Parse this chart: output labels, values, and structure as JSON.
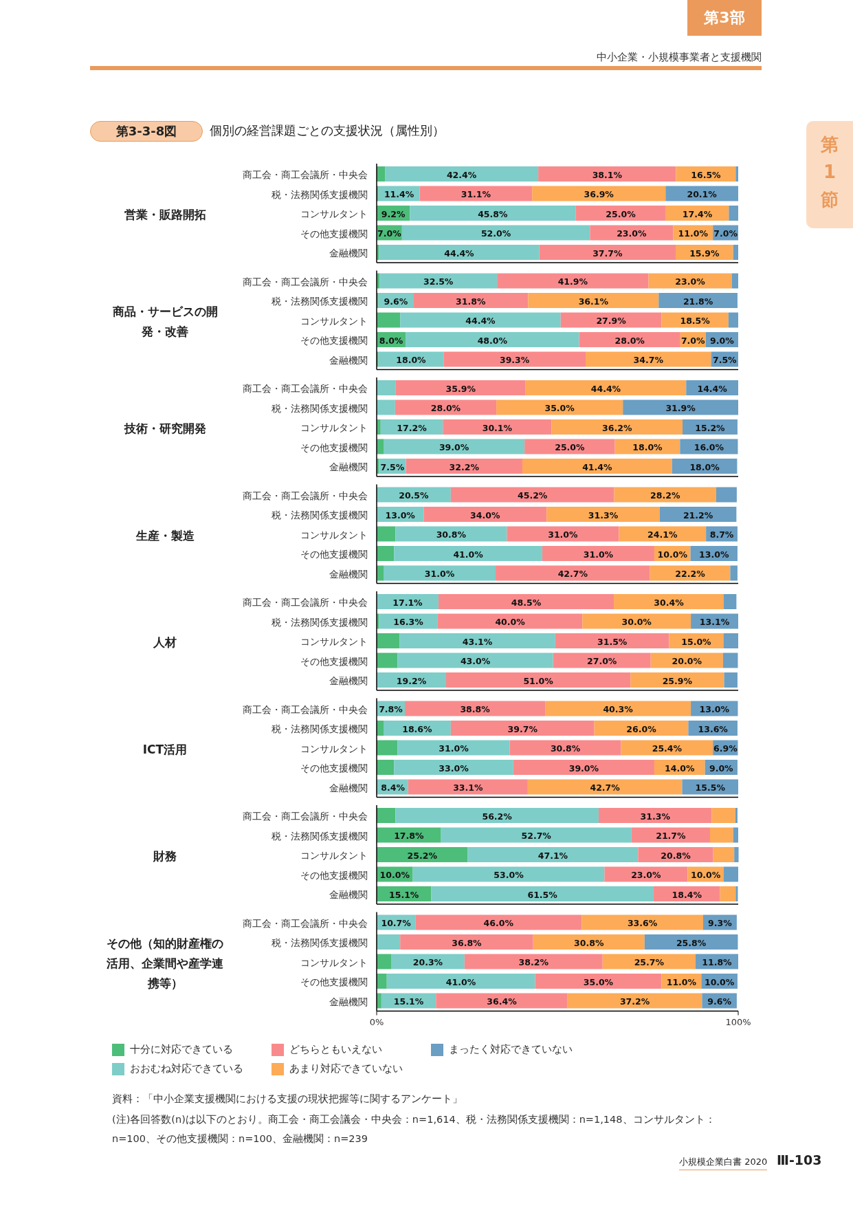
{
  "chart_data": [
    {
      "type": "bar",
      "orientation": "horizontal",
      "stacked": true,
      "title": "個別の経営課題ごとの支援状況（属性別）",
      "ylabel": "営業・販路開拓",
      "xlim": [
        0,
        100
      ],
      "tick_labels": "y",
      "annotations": [
        "第3部",
        "中小企業・小規模事業者と支援機関",
        "第1節",
        "第3-3-8図"
      ],
      "categories": [
        "商工会・商工会議所・中央会",
        "税・法務関係支援機関",
        "コンサルタント",
        "その他支援機関",
        "金融機関"
      ],
      "series": [
        {
          "color": "#4dbd7a",
          "values": [
            2.3,
            0.5,
            9.2,
            7.0,
            0.6
          ],
          "value_labels": [
            null,
            null,
            "9.2%",
            "7.0%",
            null
          ]
        },
        {
          "color": "#7ecdc8",
          "values": [
            42.4,
            11.4,
            45.8,
            52.0,
            44.4
          ],
          "value_labels": [
            "42.4%",
            "11.4%",
            "45.8%",
            "52.0%",
            "44.4%"
          ]
        },
        {
          "color": "#f98a8c",
          "values": [
            38.1,
            31.1,
            25.0,
            23.0,
            37.7
          ],
          "value_labels": [
            "38.1%",
            "31.1%",
            "25.0%",
            "23.0%",
            "37.7%"
          ]
        },
        {
          "color": "#fdab57",
          "values": [
            16.5,
            36.9,
            17.4,
            11.0,
            15.9
          ],
          "value_labels": [
            "16.5%",
            "36.9%",
            "17.4%",
            "11.0%",
            "15.9%"
          ]
        },
        {
          "color": "#6a9ec3",
          "values": [
            0.7,
            20.1,
            2.6,
            7.0,
            1.4
          ],
          "value_labels": [
            null,
            "20.1%",
            null,
            "7.0%",
            null
          ]
        }
      ]
    },
    {
      "type": "bar",
      "orientation": "horizontal",
      "stacked": true,
      "ylabel": "商品・サービスの開発・改善",
      "xlim": [
        0,
        100
      ],
      "tick_labels": "y",
      "categories": [
        "商工会・商工会議所・中央会",
        "税・法務関係支援機関",
        "コンサルタント",
        "その他支援機関",
        "金融機関"
      ],
      "series": [
        {
          "color": "#4dbd7a",
          "values": [
            0.8,
            0.5,
            6.5,
            8.0,
            0.5
          ],
          "value_labels": [
            null,
            null,
            null,
            "8.0%",
            null
          ]
        },
        {
          "color": "#7ecdc8",
          "values": [
            32.5,
            9.6,
            44.4,
            48.0,
            18.0
          ],
          "value_labels": [
            "32.5%",
            "9.6%",
            "44.4%",
            "48.0%",
            "18.0%"
          ]
        },
        {
          "color": "#f98a8c",
          "values": [
            41.9,
            31.8,
            27.9,
            28.0,
            39.3
          ],
          "value_labels": [
            "41.9%",
            "31.8%",
            "27.9%",
            "28.0%",
            "39.3%"
          ]
        },
        {
          "color": "#fdab57",
          "values": [
            23.0,
            36.1,
            18.5,
            7.0,
            34.7
          ],
          "value_labels": [
            "23.0%",
            "36.1%",
            "18.5%",
            "7.0%",
            "34.7%"
          ]
        },
        {
          "color": "#6a9ec3",
          "values": [
            1.8,
            21.8,
            2.7,
            9.0,
            7.5
          ],
          "value_labels": [
            null,
            "21.8%",
            null,
            "9.0%",
            "7.5%"
          ]
        }
      ]
    },
    {
      "type": "bar",
      "orientation": "horizontal",
      "stacked": true,
      "ylabel": "技術・研究開発",
      "xlim": [
        0,
        100
      ],
      "tick_labels": "y",
      "categories": [
        "商工会・商工会議所・中央会",
        "税・法務関係支援機関",
        "コンサルタント",
        "その他支援機関",
        "金融機関"
      ],
      "series": [
        {
          "color": "#4dbd7a",
          "values": [
            0,
            0,
            1.1,
            1.9,
            0.6
          ]
        },
        {
          "color": "#7ecdc8",
          "values": [
            5.3,
            5.1,
            17.2,
            39.0,
            7.5
          ],
          "value_labels": [
            null,
            null,
            "17.2%",
            "39.0%",
            "7.5%"
          ]
        },
        {
          "color": "#f98a8c",
          "values": [
            35.9,
            28.0,
            30.1,
            25.0,
            32.2
          ],
          "value_labels": [
            "35.9%",
            "28.0%",
            "30.1%",
            "25.0%",
            "32.2%"
          ]
        },
        {
          "color": "#fdab57",
          "values": [
            44.4,
            35.0,
            36.2,
            18.0,
            41.4
          ],
          "value_labels": [
            "44.4%",
            "35.0%",
            "36.2%",
            "18.0%",
            "41.4%"
          ]
        },
        {
          "color": "#6a9ec3",
          "values": [
            14.4,
            31.9,
            15.2,
            16.0,
            18.0
          ],
          "value_labels": [
            "14.4%",
            "31.9%",
            "15.2%",
            "16.0%",
            "18.0%"
          ]
        }
      ]
    },
    {
      "type": "bar",
      "orientation": "horizontal",
      "stacked": true,
      "ylabel": "生産・製造",
      "xlim": [
        0,
        100
      ],
      "tick_labels": "y",
      "categories": [
        "商工会・商工会議所・中央会",
        "税・法務関係支援機関",
        "コンサルタント",
        "その他支援機関",
        "金融機関"
      ],
      "series": [
        {
          "color": "#4dbd7a",
          "values": [
            null,
            null,
            5.2,
            4.8,
            1.9
          ]
        },
        {
          "color": "#7ecdc8",
          "values": [
            20.5,
            13.0,
            30.8,
            41.0,
            31.0
          ],
          "value_labels": [
            "20.5%",
            "13.0%",
            "30.8%",
            "41.0%",
            "31.0%"
          ]
        },
        {
          "color": "#f98a8c",
          "values": [
            45.2,
            34.0,
            31.0,
            31.0,
            42.7
          ],
          "value_labels": [
            "45.2%",
            "34.0%",
            "31.0%",
            "31.0%",
            "42.7%"
          ]
        },
        {
          "color": "#fdab57",
          "values": [
            28.2,
            31.3,
            24.1,
            10.0,
            22.2
          ],
          "value_labels": [
            "28.2%",
            "31.3%",
            "24.1%",
            "10.0%",
            "22.2%"
          ]
        },
        {
          "color": "#6a9ec3",
          "values": [
            5.7,
            21.2,
            8.7,
            13.0,
            2.0
          ],
          "value_labels": [
            null,
            "21.2%",
            "8.7%",
            "13.0%",
            null
          ]
        }
      ]
    },
    {
      "type": "bar",
      "orientation": "horizontal",
      "stacked": true,
      "ylabel": "人材",
      "xlim": [
        0,
        100
      ],
      "tick_labels": "y",
      "categories": [
        "商工会・商工会議所・中央会",
        "税・法務関係支援機関",
        "コンサルタント",
        "その他支援機関",
        "金融機関"
      ],
      "series": [
        {
          "color": "#4dbd7a",
          "values": [
            0,
            0.6,
            6.3,
            5.8,
            0
          ]
        },
        {
          "color": "#7ecdc8",
          "values": [
            17.1,
            16.3,
            43.1,
            43.0,
            19.2
          ],
          "value_labels": [
            "17.1%",
            "16.3%",
            "43.1%",
            "43.0%",
            "19.2%"
          ]
        },
        {
          "color": "#f98a8c",
          "values": [
            48.5,
            40.0,
            31.5,
            27.0,
            51.0
          ],
          "value_labels": [
            "48.5%",
            "40.0%",
            "31.5%",
            "27.0%",
            "51.0%"
          ]
        },
        {
          "color": "#fdab57",
          "values": [
            30.4,
            30.0,
            15.0,
            20.0,
            25.9
          ],
          "value_labels": [
            "30.4%",
            "30.0%",
            "15.0%",
            "20.0%",
            "25.9%"
          ]
        },
        {
          "color": "#6a9ec3",
          "values": [
            3.5,
            13.1,
            4.1,
            4.1,
            3.7
          ],
          "value_labels": [
            null,
            "13.1%",
            null,
            null,
            null
          ]
        }
      ]
    },
    {
      "type": "bar",
      "orientation": "horizontal",
      "stacked": true,
      "ylabel": "ICT活用",
      "xlim": [
        0,
        100
      ],
      "tick_labels": "y",
      "categories": [
        "商工会・商工会議所・中央会",
        "税・法務関係支援機関",
        "コンサルタント",
        "その他支援機関",
        "金融機関"
      ],
      "series": [
        {
          "color": "#4dbd7a",
          "values": [
            0,
            1.9,
            5.8,
            4.8,
            0.3
          ]
        },
        {
          "color": "#7ecdc8",
          "values": [
            7.8,
            18.6,
            31.0,
            33.0,
            8.4
          ],
          "value_labels": [
            "7.8%",
            "18.6%",
            "31.0%",
            "33.0%",
            "8.4%"
          ]
        },
        {
          "color": "#f98a8c",
          "values": [
            38.8,
            39.7,
            30.8,
            39.0,
            33.1
          ],
          "value_labels": [
            "38.8%",
            "39.7%",
            "30.8%",
            "39.0%",
            "33.1%"
          ]
        },
        {
          "color": "#fdab57",
          "values": [
            40.3,
            26.0,
            25.4,
            14.0,
            42.7
          ],
          "value_labels": [
            "40.3%",
            "26.0%",
            "25.4%",
            "14.0%",
            "42.7%"
          ]
        },
        {
          "color": "#6a9ec3",
          "values": [
            13.0,
            13.6,
            6.9,
            9.0,
            15.5
          ],
          "value_labels": [
            "13.0%",
            "13.6%",
            "6.9%",
            "9.0%",
            "15.5%"
          ]
        }
      ]
    },
    {
      "type": "bar",
      "orientation": "horizontal",
      "stacked": true,
      "ylabel": "財務",
      "xlim": [
        0,
        100
      ],
      "tick_labels": "y",
      "categories": [
        "商工会・商工会議所・中央会",
        "税・法務関係支援機関",
        "コンサルタント",
        "その他支援機関",
        "金融機関"
      ],
      "series": [
        {
          "color": "#4dbd7a",
          "values": [
            5.2,
            17.8,
            25.2,
            10.0,
            15.1
          ],
          "value_labels": [
            null,
            "17.8%",
            "25.2%",
            "10.0%",
            "15.1%"
          ]
        },
        {
          "color": "#7ecdc8",
          "values": [
            56.2,
            52.7,
            47.1,
            53.0,
            61.5
          ],
          "value_labels": [
            "56.2%",
            "52.7%",
            "47.1%",
            "53.0%",
            "61.5%"
          ]
        },
        {
          "color": "#f98a8c",
          "values": [
            31.3,
            21.7,
            20.8,
            23.0,
            18.4
          ],
          "value_labels": [
            "31.3%",
            "21.7%",
            "20.8%",
            "23.0%",
            "18.4%"
          ]
        },
        {
          "color": "#fdab57",
          "values": [
            6.5,
            6.4,
            5.8,
            10.0,
            4.3
          ],
          "value_labels": [
            null,
            null,
            null,
            "10.0%",
            null
          ]
        },
        {
          "color": "#6a9ec3",
          "values": [
            0.6,
            1.4,
            1.2,
            4.0,
            0.6
          ]
        }
      ]
    },
    {
      "type": "bar",
      "orientation": "horizontal",
      "stacked": true,
      "ylabel": "その他（知的財産権の活用、企業間や産学連携等）",
      "xlim": [
        0,
        100
      ],
      "xticks": [
        {
          "value": 0,
          "label": "0%"
        },
        {
          "value": 100,
          "label": "100%"
        }
      ],
      "legend": "bottom",
      "annotations": [
        "資料：「中小企業支援機関における支援の現状把握等に関するアンケート」",
        "(注)各回答数(n)は以下のとおり。商工会・商工会議会・中央会：n=1,614、税・法務関係支援機関：n=1,148、コンサルタント：n=100、その他支援機関：n=100、金融機関：n=239",
        "小規模企業白書 2020",
        "Ⅲ-103"
      ],
      "categories": [
        "商工会・商工会議所・中央会",
        "税・法務関係支援機関",
        "コンサルタント",
        "その他支援機関",
        "金融機関"
      ],
      "series": [
        {
          "name": "十分に対応できている",
          "color": "#4dbd7a",
          "values": [
            null,
            0.3,
            4.0,
            2.8,
            1.3
          ]
        },
        {
          "name": "おおむね対応できている",
          "color": "#7ecdc8",
          "values": [
            10.7,
            6.2,
            20.3,
            41.0,
            15.1
          ],
          "value_labels": [
            "10.7%",
            null,
            "20.3%",
            "41.0%",
            "15.1%"
          ]
        },
        {
          "name": "どちらともいえない",
          "color": "#f98a8c",
          "values": [
            46.0,
            36.8,
            38.2,
            35.0,
            36.4
          ],
          "value_labels": [
            "46.0%",
            "36.8%",
            "38.2%",
            "35.0%",
            "36.4%"
          ]
        },
        {
          "name": "あまり対応できていない",
          "color": "#fdab57",
          "values": [
            33.6,
            30.8,
            25.7,
            11.0,
            37.2
          ],
          "value_labels": [
            "33.6%",
            "30.8%",
            "25.7%",
            "11.0%",
            "37.2%"
          ]
        },
        {
          "name": "まったく対応できていない",
          "color": "#6a9ec3",
          "values": [
            9.3,
            25.8,
            11.8,
            10.0,
            9.6
          ],
          "value_labels": [
            "9.3%",
            "25.8%",
            "11.8%",
            "10.0%",
            "9.6%"
          ]
        }
      ]
    }
  ]
}
